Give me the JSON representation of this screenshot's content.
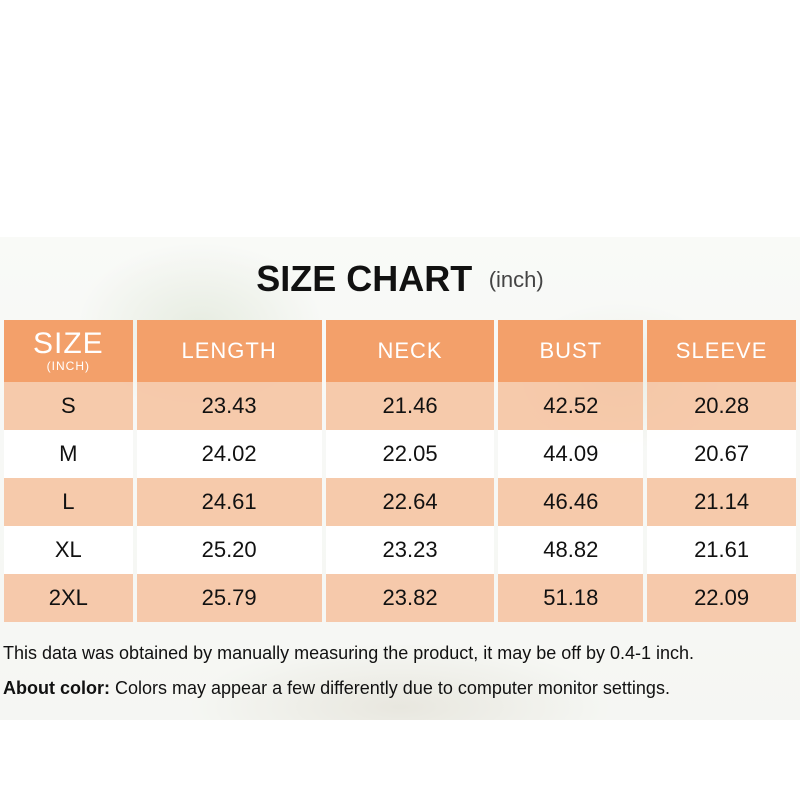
{
  "title": "SIZE CHART",
  "title_unit": "(inch)",
  "header": {
    "size_label": "SIZE",
    "size_unit": "(INCH)",
    "columns": [
      "LENGTH",
      "NECK",
      "BUST",
      "SLEEVE"
    ]
  },
  "rows": [
    {
      "size": "S",
      "values": [
        "23.43",
        "21.46",
        "42.52",
        "20.28"
      ]
    },
    {
      "size": "M",
      "values": [
        "24.02",
        "22.05",
        "44.09",
        "20.67"
      ]
    },
    {
      "size": "L",
      "values": [
        "24.61",
        "22.64",
        "46.46",
        "21.14"
      ]
    },
    {
      "size": "XL",
      "values": [
        "25.20",
        "23.23",
        "48.82",
        "21.61"
      ]
    },
    {
      "size": "2XL",
      "values": [
        "25.79",
        "23.82",
        "51.18",
        "22.09"
      ]
    }
  ],
  "notes": {
    "measurement": "This data was obtained by manually measuring the product, it may be off by 0.4-1 inch.",
    "color_label": "About color:",
    "color_text": "Colors may appear a few differently due to computer monitor settings."
  },
  "colors": {
    "header": "#f3a06a",
    "alt_row": "#f6bc96"
  }
}
